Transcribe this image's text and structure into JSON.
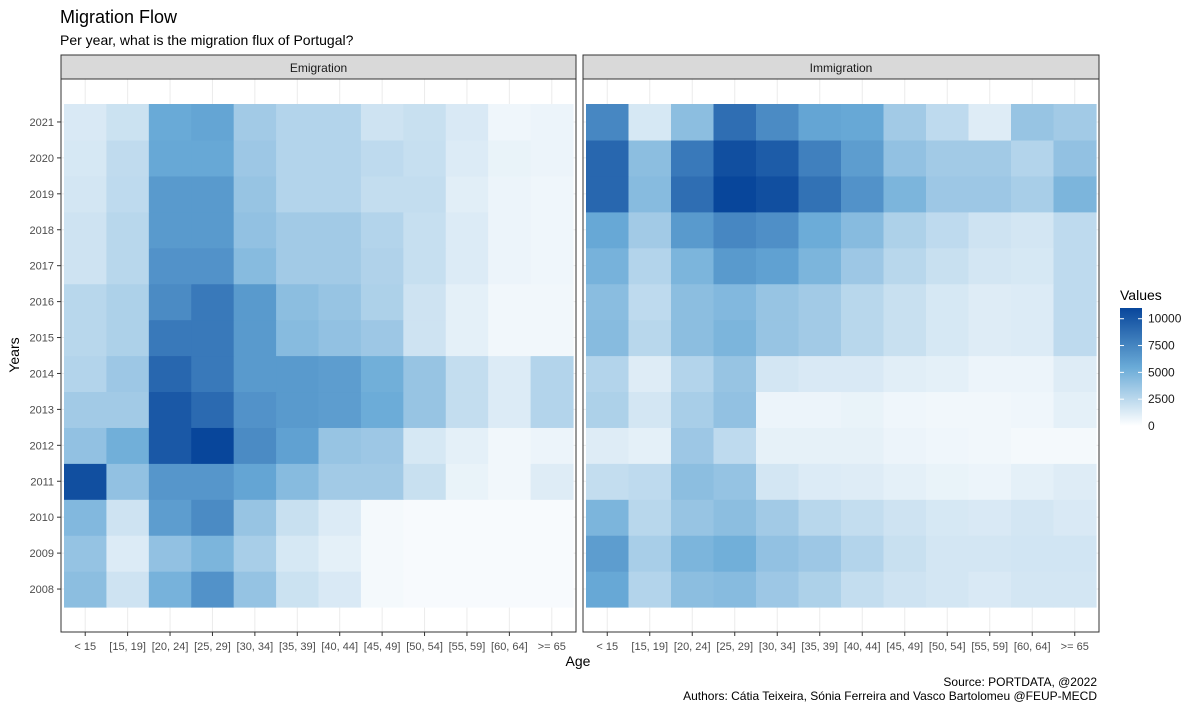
{
  "chart_data": {
    "type": "heatmap",
    "title": "Migration Flow",
    "subtitle": "Per year, what is the migration flux of Portugal?",
    "xlabel": "Age",
    "ylabel": "Years",
    "facets": [
      "Emigration",
      "Immigration"
    ],
    "x_categories": [
      "< 15",
      "[15, 19]",
      "[20, 24]",
      "[25, 29]",
      "[30, 34]",
      "[35, 39]",
      "[40, 44]",
      "[45, 49]",
      "[50, 54]",
      "[55, 59]",
      "[60, 64]",
      ">= 65"
    ],
    "y_categories": [
      "2008",
      "2009",
      "2010",
      "2011",
      "2012",
      "2013",
      "2014",
      "2015",
      "2016",
      "2017",
      "2018",
      "2019",
      "2020",
      "2021"
    ],
    "legend": {
      "title": "Values",
      "range": [
        0,
        11000
      ],
      "ticks": [
        "0",
        "2500",
        "5000",
        "7500",
        "10000"
      ],
      "tick_values": [
        0,
        2500,
        5000,
        7500,
        10000
      ],
      "position": "right"
    },
    "grid": true,
    "colors": {
      "low": "#ffffff",
      "high": "#08469b",
      "panel_border": "#333333",
      "strip_bg": "#d9d9d9",
      "grid": "#ebebeb"
    },
    "series": [
      {
        "name": "Emigration",
        "values": [
          [
            4200,
            1800,
            5000,
            6800,
            3900,
            1900,
            1400,
            400,
            300,
            300,
            300,
            300
          ],
          [
            3900,
            1300,
            4000,
            4800,
            3200,
            1500,
            1000,
            400,
            300,
            300,
            300,
            300
          ],
          [
            4600,
            1800,
            6200,
            7200,
            3800,
            2000,
            1300,
            400,
            300,
            300,
            300,
            300
          ],
          [
            10500,
            4000,
            6600,
            6600,
            5800,
            4400,
            3400,
            3400,
            2000,
            800,
            500,
            1200
          ],
          [
            4000,
            5200,
            10000,
            11000,
            7200,
            6000,
            3800,
            3600,
            1500,
            1000,
            500,
            700
          ],
          [
            3400,
            3400,
            10000,
            9000,
            6800,
            6400,
            6200,
            5400,
            3800,
            2200,
            1300,
            2800
          ],
          [
            2800,
            3600,
            9200,
            8200,
            6400,
            6400,
            6200,
            5200,
            3800,
            2200,
            1300,
            2800
          ],
          [
            2600,
            3000,
            8200,
            8200,
            6400,
            4400,
            4000,
            3600,
            1800,
            1000,
            500,
            500
          ],
          [
            2600,
            3000,
            7200,
            8200,
            6400,
            4200,
            3800,
            3000,
            1800,
            1000,
            500,
            500
          ],
          [
            1800,
            2600,
            6800,
            6800,
            4400,
            3400,
            3400,
            2900,
            2100,
            1300,
            700,
            600
          ],
          [
            1800,
            2600,
            6400,
            6400,
            4000,
            3400,
            3400,
            2800,
            2100,
            1300,
            700,
            600
          ],
          [
            1600,
            2400,
            6400,
            6400,
            3800,
            2800,
            2800,
            2200,
            2200,
            1100,
            700,
            600
          ],
          [
            1500,
            2300,
            5600,
            5600,
            3600,
            2800,
            2800,
            2400,
            2100,
            1300,
            800,
            700
          ],
          [
            1400,
            1900,
            5500,
            5800,
            3400,
            2800,
            2800,
            1800,
            2000,
            1400,
            600,
            700
          ]
        ]
      },
      {
        "name": "Immigration",
        "values": [
          [
            5600,
            2800,
            4200,
            4400,
            3600,
            3000,
            2200,
            1800,
            1600,
            1400,
            1600,
            1600
          ],
          [
            6200,
            3200,
            4800,
            5200,
            4000,
            3600,
            2800,
            2000,
            1600,
            1600,
            1700,
            1700
          ],
          [
            4800,
            2600,
            3800,
            4200,
            3400,
            2600,
            2200,
            1800,
            1500,
            1400,
            1600,
            1400
          ],
          [
            2200,
            2400,
            4200,
            3900,
            1600,
            1300,
            1200,
            1000,
            800,
            700,
            1000,
            1200
          ],
          [
            1200,
            1000,
            3600,
            2400,
            900,
            900,
            900,
            700,
            600,
            500,
            400,
            400
          ],
          [
            3000,
            1600,
            3200,
            4000,
            700,
            700,
            800,
            600,
            500,
            500,
            600,
            1000
          ],
          [
            2800,
            1200,
            2800,
            3800,
            1600,
            1400,
            1400,
            1100,
            1000,
            700,
            700,
            1200
          ],
          [
            4400,
            2600,
            4200,
            4800,
            3800,
            3400,
            2600,
            2000,
            1500,
            1200,
            1300,
            2400
          ],
          [
            4300,
            2400,
            4200,
            4600,
            3800,
            3400,
            2600,
            2000,
            1500,
            1200,
            1300,
            2400
          ],
          [
            5000,
            2800,
            4800,
            6400,
            6000,
            4800,
            3600,
            2600,
            2000,
            1600,
            1500,
            2400
          ],
          [
            5600,
            3400,
            6400,
            7400,
            7000,
            5400,
            4400,
            3000,
            2400,
            1800,
            1600,
            2400
          ],
          [
            9200,
            4400,
            8800,
            11000,
            10500,
            8600,
            6800,
            4800,
            3600,
            3600,
            3200,
            4800
          ],
          [
            9200,
            4200,
            8200,
            10500,
            9800,
            7800,
            6200,
            4000,
            3400,
            3400,
            2800,
            4000
          ],
          [
            7400,
            1500,
            4200,
            8800,
            7200,
            5800,
            5600,
            3400,
            2400,
            1200,
            3800,
            3400
          ]
        ]
      }
    ]
  },
  "caption": {
    "source": "Source: PORTDATA, @2022",
    "authors": "Authors: Cátia Teixeira, Sónia Ferreira and Vasco Bartolomeu @FEUP-MECD"
  }
}
